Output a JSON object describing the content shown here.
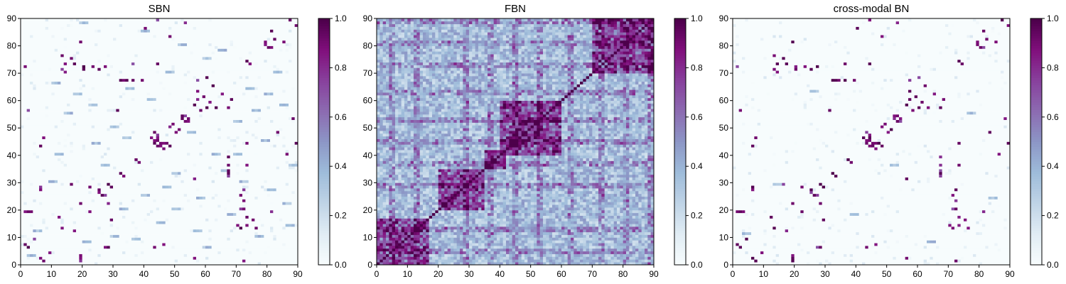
{
  "chart_data": [
    {
      "type": "heatmap",
      "title": "SBN",
      "xlim": [
        0,
        90
      ],
      "ylim": [
        0,
        90
      ],
      "x_ticks": [
        "0",
        "10",
        "20",
        "30",
        "40",
        "50",
        "60",
        "70",
        "80",
        "90"
      ],
      "y_ticks": [
        "0",
        "10",
        "20",
        "30",
        "40",
        "50",
        "60",
        "70",
        "80",
        "90"
      ],
      "grid_size": 90,
      "colormap": "BuPu",
      "colorbar": {
        "range": [
          0.0,
          1.0
        ],
        "ticks": [
          "0.0",
          "0.2",
          "0.4",
          "0.6",
          "0.8",
          "1.0"
        ]
      },
      "strong_cells": [
        [
          1,
          19
        ],
        [
          2,
          19
        ],
        [
          3,
          19
        ],
        [
          1,
          7
        ],
        [
          2,
          6
        ],
        [
          6,
          2
        ],
        [
          7,
          1
        ],
        [
          6,
          27
        ],
        [
          6,
          43
        ],
        [
          7,
          46
        ],
        [
          9,
          4
        ],
        [
          12,
          17
        ],
        [
          13,
          13
        ],
        [
          13,
          76
        ],
        [
          14,
          73
        ],
        [
          16,
          75
        ],
        [
          17,
          73
        ],
        [
          19,
          81
        ],
        [
          20,
          71
        ],
        [
          22,
          28
        ],
        [
          23,
          72
        ],
        [
          25,
          27
        ],
        [
          25,
          71
        ],
        [
          26,
          25
        ],
        [
          27,
          72
        ],
        [
          28,
          6
        ],
        [
          28,
          29
        ],
        [
          29,
          16
        ],
        [
          29,
          28
        ],
        [
          31,
          56
        ],
        [
          32,
          67
        ],
        [
          32,
          33
        ],
        [
          33,
          67
        ],
        [
          33,
          32
        ],
        [
          34,
          67
        ],
        [
          36,
          67
        ],
        [
          37,
          38
        ],
        [
          38,
          37
        ],
        [
          39,
          67
        ],
        [
          42,
          46
        ],
        [
          43,
          44
        ],
        [
          43,
          45
        ],
        [
          44,
          43
        ],
        [
          44,
          46
        ],
        [
          45,
          44
        ],
        [
          46,
          42
        ],
        [
          46,
          7
        ],
        [
          47,
          44
        ],
        [
          48,
          43
        ],
        [
          49,
          51
        ],
        [
          50,
          48
        ],
        [
          51,
          49
        ],
        [
          52,
          54
        ],
        [
          53,
          52
        ],
        [
          54,
          53
        ],
        [
          56,
          58
        ],
        [
          56,
          2
        ],
        [
          58,
          56
        ],
        [
          59,
          61
        ],
        [
          60,
          57
        ],
        [
          61,
          59
        ],
        [
          62,
          65
        ],
        [
          63,
          57
        ],
        [
          65,
          62
        ],
        [
          67,
          57
        ],
        [
          68,
          60
        ],
        [
          70,
          14
        ],
        [
          71,
          13
        ],
        [
          72,
          20
        ],
        [
          73,
          74
        ],
        [
          74,
          73
        ],
        [
          75,
          16
        ],
        [
          76,
          13
        ],
        [
          79,
          81
        ],
        [
          80,
          79
        ],
        [
          81,
          85
        ],
        [
          82,
          82
        ],
        [
          83,
          48
        ],
        [
          85,
          81
        ],
        [
          86,
          40
        ],
        [
          87,
          89
        ],
        [
          88,
          53
        ],
        [
          89,
          87
        ],
        [
          89,
          44
        ],
        [
          72,
          1
        ],
        [
          73,
          36
        ],
        [
          44,
          73
        ],
        [
          67,
          33
        ],
        [
          57,
          63
        ],
        [
          19,
          22
        ]
      ],
      "light_cells": [
        [
          3,
          3
        ],
        [
          5,
          12
        ],
        [
          10,
          30
        ],
        [
          12,
          40
        ],
        [
          15,
          55
        ],
        [
          18,
          62
        ],
        [
          21,
          8
        ],
        [
          24,
          44
        ],
        [
          27,
          36
        ],
        [
          30,
          50
        ],
        [
          33,
          20
        ],
        [
          35,
          64
        ],
        [
          37,
          9
        ],
        [
          40,
          25
        ],
        [
          42,
          60
        ],
        [
          45,
          15
        ],
        [
          48,
          70
        ],
        [
          50,
          33
        ],
        [
          52,
          80
        ],
        [
          55,
          48
        ],
        [
          58,
          24
        ],
        [
          60,
          6
        ],
        [
          63,
          40
        ],
        [
          65,
          78
        ],
        [
          68,
          18
        ],
        [
          70,
          52
        ],
        [
          72,
          30
        ],
        [
          74,
          64
        ],
        [
          77,
          10
        ],
        [
          79,
          45
        ],
        [
          81,
          27
        ],
        [
          83,
          70
        ],
        [
          85,
          58
        ],
        [
          87,
          14
        ],
        [
          88,
          36
        ],
        [
          20,
          88
        ],
        [
          30,
          10
        ],
        [
          40,
          85
        ],
        [
          50,
          20
        ],
        [
          60,
          75
        ],
        [
          70,
          40
        ],
        [
          80,
          62
        ],
        [
          11,
          66
        ],
        [
          23,
          58
        ],
        [
          34,
          46
        ],
        [
          47,
          28
        ],
        [
          57,
          12
        ],
        [
          66,
          34
        ],
        [
          76,
          56
        ],
        [
          86,
          22
        ]
      ]
    },
    {
      "type": "heatmap",
      "title": "FBN",
      "xlim": [
        0,
        90
      ],
      "ylim": [
        0,
        90
      ],
      "x_ticks": [
        "0",
        "10",
        "20",
        "30",
        "40",
        "50",
        "60",
        "70",
        "80",
        "90"
      ],
      "y_ticks": [
        "0",
        "10",
        "20",
        "30",
        "40",
        "50",
        "60",
        "70",
        "80",
        "90"
      ],
      "grid_size": 90,
      "colormap": "BuPu",
      "colorbar": {
        "range": [
          0.0,
          1.0
        ],
        "ticks": [
          "0.0",
          "0.2",
          "0.4",
          "0.6",
          "0.8",
          "1.0"
        ]
      },
      "diagonal": true,
      "dense_blocks": [
        [
          0,
          17,
          0,
          17
        ],
        [
          40,
          60,
          40,
          60
        ],
        [
          70,
          90,
          70,
          90
        ],
        [
          35,
          42,
          35,
          42
        ],
        [
          20,
          35,
          20,
          35
        ]
      ],
      "strong_columns": [
        4,
        5,
        12,
        13,
        28,
        29,
        36,
        37,
        44,
        45,
        52,
        53,
        62,
        63,
        72,
        73,
        80,
        81,
        88,
        89
      ]
    },
    {
      "type": "heatmap",
      "title": "cross-modal BN",
      "xlim": [
        0,
        90
      ],
      "ylim": [
        0,
        90
      ],
      "x_ticks": [
        "0",
        "10",
        "20",
        "30",
        "40",
        "50",
        "60",
        "70",
        "80",
        "90"
      ],
      "y_ticks": [
        "0",
        "10",
        "20",
        "30",
        "40",
        "50",
        "60",
        "70",
        "80",
        "90"
      ],
      "grid_size": 90,
      "colormap": "BuPu",
      "colorbar": {
        "range": [
          0.0,
          1.0
        ],
        "ticks": [
          "0.0",
          "0.2",
          "0.4",
          "0.6",
          "0.8",
          "1.0"
        ]
      },
      "strong_cells": [
        [
          1,
          19
        ],
        [
          2,
          19
        ],
        [
          3,
          19
        ],
        [
          1,
          7
        ],
        [
          2,
          6
        ],
        [
          6,
          2
        ],
        [
          7,
          1
        ],
        [
          6,
          27
        ],
        [
          6,
          43
        ],
        [
          7,
          46
        ],
        [
          9,
          4
        ],
        [
          12,
          17
        ],
        [
          13,
          13
        ],
        [
          13,
          76
        ],
        [
          14,
          73
        ],
        [
          16,
          75
        ],
        [
          17,
          73
        ],
        [
          19,
          81
        ],
        [
          20,
          71
        ],
        [
          22,
          28
        ],
        [
          23,
          72
        ],
        [
          25,
          27
        ],
        [
          25,
          71
        ],
        [
          26,
          25
        ],
        [
          27,
          72
        ],
        [
          28,
          6
        ],
        [
          28,
          29
        ],
        [
          29,
          16
        ],
        [
          29,
          28
        ],
        [
          31,
          56
        ],
        [
          32,
          67
        ],
        [
          32,
          33
        ],
        [
          33,
          67
        ],
        [
          33,
          32
        ],
        [
          34,
          67
        ],
        [
          36,
          67
        ],
        [
          37,
          38
        ],
        [
          38,
          37
        ],
        [
          39,
          67
        ],
        [
          42,
          46
        ],
        [
          43,
          44
        ],
        [
          43,
          45
        ],
        [
          44,
          43
        ],
        [
          44,
          46
        ],
        [
          45,
          44
        ],
        [
          46,
          42
        ],
        [
          46,
          7
        ],
        [
          47,
          44
        ],
        [
          48,
          43
        ],
        [
          49,
          51
        ],
        [
          50,
          48
        ],
        [
          51,
          49
        ],
        [
          52,
          54
        ],
        [
          53,
          52
        ],
        [
          54,
          53
        ],
        [
          56,
          58
        ],
        [
          56,
          2
        ],
        [
          58,
          56
        ],
        [
          59,
          61
        ],
        [
          60,
          57
        ],
        [
          61,
          59
        ],
        [
          62,
          65
        ],
        [
          63,
          57
        ],
        [
          65,
          62
        ],
        [
          67,
          57
        ],
        [
          68,
          60
        ],
        [
          70,
          14
        ],
        [
          71,
          13
        ],
        [
          72,
          20
        ],
        [
          73,
          74
        ],
        [
          74,
          73
        ],
        [
          75,
          16
        ],
        [
          76,
          13
        ],
        [
          79,
          81
        ],
        [
          80,
          79
        ],
        [
          81,
          85
        ],
        [
          82,
          82
        ],
        [
          83,
          48
        ],
        [
          85,
          81
        ],
        [
          86,
          40
        ],
        [
          87,
          89
        ],
        [
          88,
          53
        ],
        [
          89,
          87
        ],
        [
          89,
          44
        ],
        [
          72,
          1
        ],
        [
          73,
          36
        ],
        [
          44,
          73
        ],
        [
          67,
          33
        ],
        [
          57,
          63
        ],
        [
          19,
          22
        ]
      ],
      "light_cells": [
        [
          4,
          11
        ],
        [
          14,
          29
        ],
        [
          26,
          63
        ],
        [
          39,
          18
        ],
        [
          52,
          36
        ],
        [
          64,
          8
        ],
        [
          77,
          55
        ],
        [
          84,
          24
        ]
      ]
    }
  ]
}
